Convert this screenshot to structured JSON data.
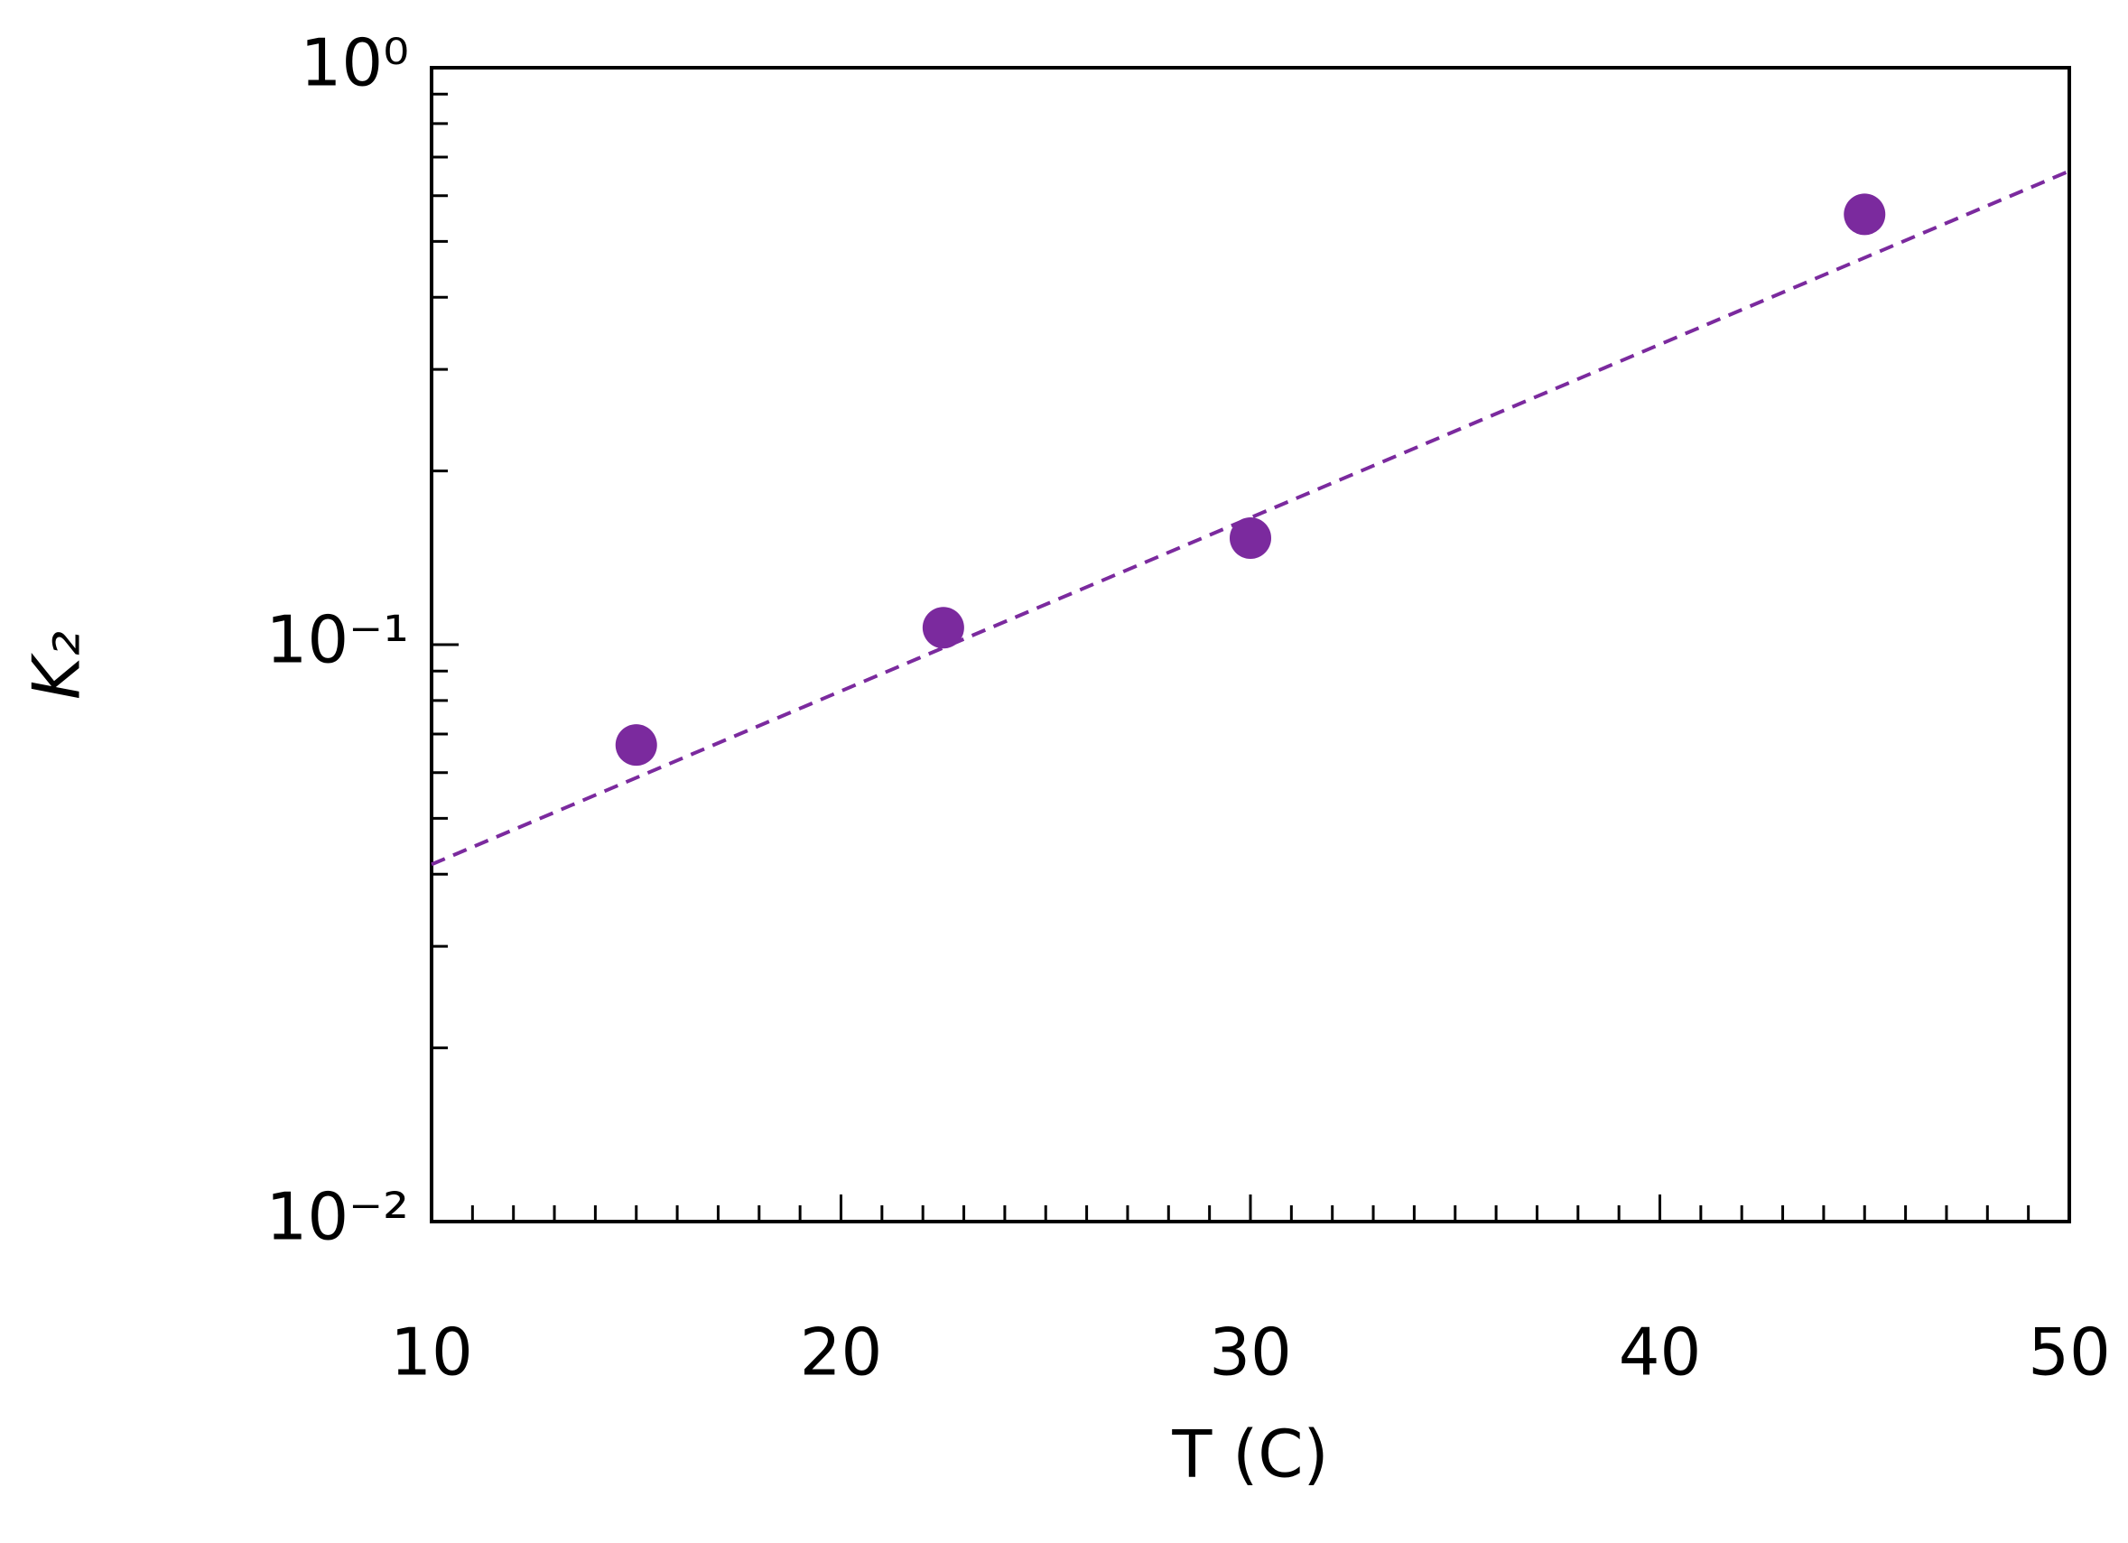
{
  "chart_data": {
    "type": "scatter",
    "xlabel": "T (C)",
    "ylabel": "K₂",
    "xlim": [
      10,
      50
    ],
    "ylim": [
      0.01,
      1
    ],
    "ylog": true,
    "xticks": [
      10,
      20,
      30,
      40,
      50
    ],
    "xminorticks": [
      11,
      12,
      13,
      14,
      15,
      16,
      17,
      18,
      19,
      21,
      22,
      23,
      24,
      25,
      26,
      27,
      28,
      29,
      31,
      32,
      33,
      34,
      35,
      36,
      37,
      38,
      39,
      41,
      42,
      43,
      44,
      45,
      46,
      47,
      48,
      49
    ],
    "yticks": [
      {
        "value": 0.01,
        "label": "10⁻²"
      },
      {
        "value": 0.1,
        "label": "10⁻¹"
      },
      {
        "value": 1,
        "label": "10⁰"
      }
    ],
    "yminorticks": [
      0.02,
      0.03,
      0.04,
      0.05,
      0.06,
      0.07,
      0.08,
      0.09,
      0.2,
      0.3,
      0.4,
      0.5,
      0.6,
      0.7,
      0.8,
      0.9
    ],
    "series": [
      {
        "color": "#7b2a9e",
        "x": [
          15,
          22.5,
          30,
          45
        ],
        "values": [
          0.067,
          0.107,
          0.153,
          0.557
        ]
      }
    ],
    "fit": {
      "color": "#7b2a9e",
      "x": [
        10,
        50
      ],
      "values": [
        0.0416,
        0.662
      ]
    }
  }
}
